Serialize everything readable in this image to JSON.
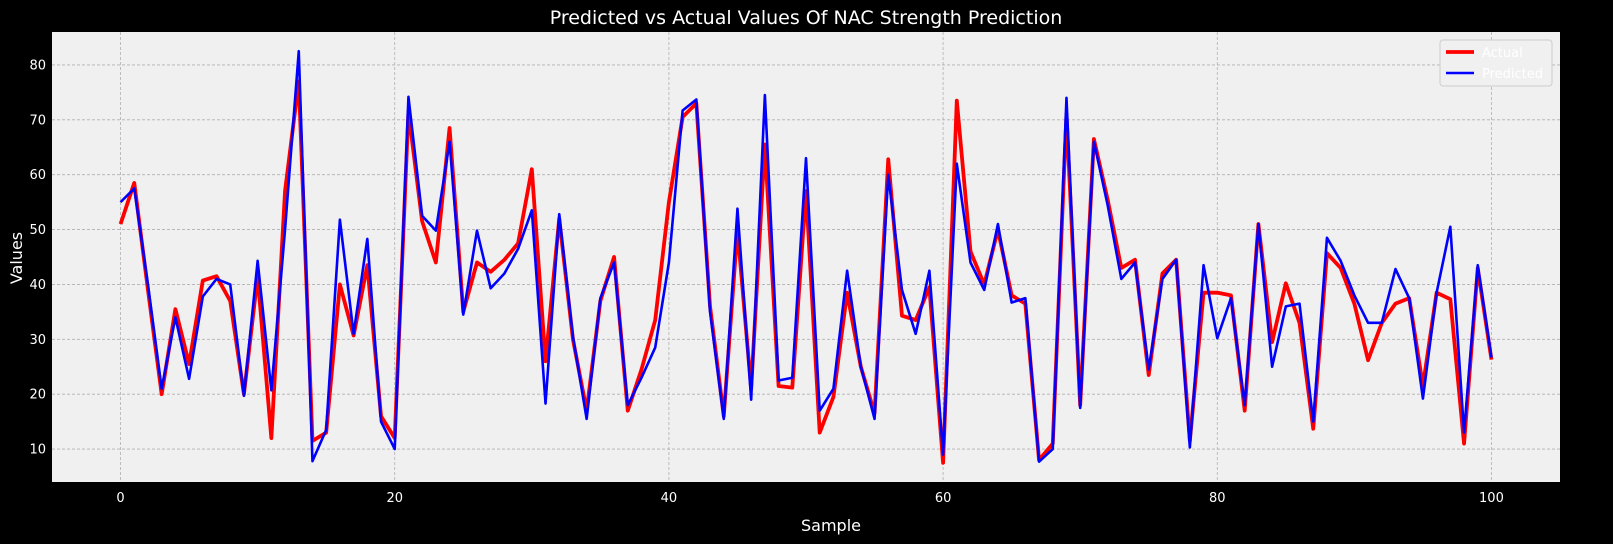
{
  "chart_data": {
    "type": "line",
    "title": "Predicted vs Actual Values Of NAC Strength Prediction",
    "xlabel": "Sample",
    "ylabel": "Values",
    "xlim": [
      -5,
      105
    ],
    "ylim": [
      4,
      86
    ],
    "xticks": [
      0,
      20,
      40,
      60,
      80,
      100
    ],
    "yticks": [
      10,
      20,
      30,
      40,
      50,
      60,
      70,
      80
    ],
    "grid": true,
    "legend_position": "top-right",
    "series": [
      {
        "name": "Actual",
        "color": "#ff0000",
        "values": [
          51.0,
          58.5,
          39.0,
          20.0,
          35.5,
          25.5,
          40.7,
          41.5,
          37.0,
          20.0,
          41.5,
          12.0,
          57.0,
          77.0,
          11.5,
          13.0,
          40.0,
          30.7,
          43.5,
          16.0,
          12.0,
          71.5,
          51.5,
          44.0,
          68.5,
          35.0,
          44.0,
          42.3,
          44.5,
          47.5,
          61.0,
          26.0,
          52.0,
          30.0,
          17.0,
          37.0,
          45.0,
          17.0,
          24.5,
          33.5,
          55.0,
          70.5,
          73.0,
          36.0,
          16.0,
          50.0,
          21.0,
          65.5,
          21.5,
          21.2,
          57.0,
          13.0,
          19.5,
          38.5,
          25.0,
          16.5,
          62.8,
          34.3,
          33.5,
          39.5,
          7.5,
          73.5,
          46.0,
          40.0,
          50.0,
          38.0,
          36.5,
          8.0,
          11.0,
          71.0,
          18.0,
          66.5,
          55.5,
          43.0,
          44.5,
          23.5,
          42.0,
          44.5,
          11.5,
          38.5,
          38.5,
          38.0,
          17.0,
          51.0,
          29.5,
          40.2,
          33.0,
          13.7,
          45.7,
          43.0,
          36.5,
          26.2,
          33.0,
          36.5,
          37.5,
          21.5,
          38.5,
          37.3,
          11.0,
          43.0,
          26.3
        ]
      },
      {
        "name": "Predicted",
        "color": "#0000ff",
        "values": [
          55.0,
          57.5,
          40.0,
          21.0,
          34.0,
          22.8,
          37.8,
          41.0,
          40.0,
          19.7,
          44.3,
          20.7,
          50.0,
          82.5,
          7.8,
          13.5,
          51.8,
          31.0,
          48.3,
          15.0,
          10.0,
          74.2,
          52.5,
          49.8,
          66.0,
          34.5,
          49.8,
          39.3,
          42.0,
          46.5,
          53.5,
          18.3,
          52.8,
          30.5,
          15.5,
          37.5,
          44.0,
          18.0,
          23.0,
          28.5,
          44.0,
          71.7,
          73.7,
          35.0,
          15.5,
          53.8,
          19.0,
          74.5,
          22.5,
          23.0,
          63.0,
          17.0,
          21.0,
          42.5,
          25.0,
          15.5,
          60.0,
          39.0,
          31.0,
          42.5,
          9.0,
          62.0,
          44.0,
          39.0,
          51.0,
          36.7,
          37.5,
          7.7,
          10.0,
          74.0,
          17.5,
          66.0,
          54.5,
          41.0,
          44.0,
          24.5,
          41.0,
          44.5,
          10.3,
          43.5,
          30.2,
          37.5,
          18.0,
          51.0,
          25.0,
          36.0,
          36.5,
          15.0,
          48.5,
          44.3,
          38.0,
          33.0,
          33.0,
          42.8,
          37.5,
          19.2,
          38.5,
          50.5,
          13.0,
          43.5,
          26.7
        ]
      }
    ]
  }
}
